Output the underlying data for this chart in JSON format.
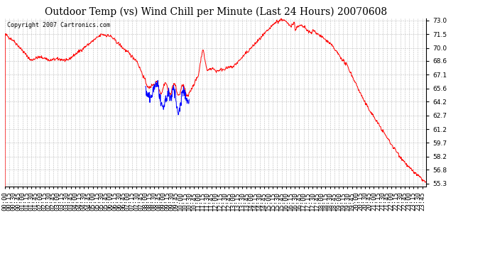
{
  "title": "Outdoor Temp (vs) Wind Chill per Minute (Last 24 Hours) 20070608",
  "copyright": "Copyright 2007 Cartronics.com",
  "yticks": [
    55.3,
    56.8,
    58.2,
    59.7,
    61.2,
    62.7,
    64.2,
    65.6,
    67.1,
    68.6,
    70.0,
    71.5,
    73.0
  ],
  "ymin": 55.0,
  "ymax": 73.2,
  "bg_color": "#ffffff",
  "grid_color": "#bbbbbb",
  "red_color": "#ff0000",
  "blue_color": "#0000ff",
  "title_fontsize": 10,
  "copyright_fontsize": 6,
  "tick_fontsize": 6.5
}
